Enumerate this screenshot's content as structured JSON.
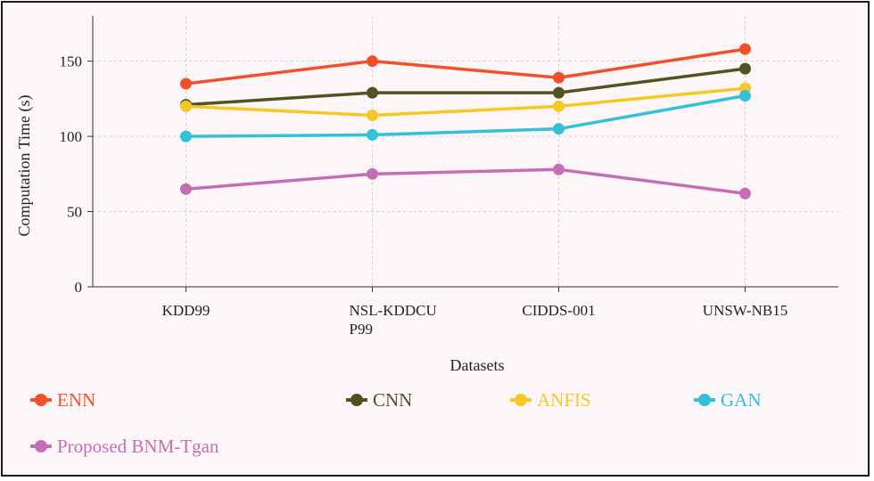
{
  "chart_data": {
    "type": "line",
    "title": "",
    "xlabel": "Datasets",
    "ylabel": "Computation Time (s)",
    "categories": [
      "KDD99",
      "NSL-KDDCUP99",
      "CIDDS-001",
      "UNSW-NB15"
    ],
    "category_display": [
      [
        "KDD99"
      ],
      [
        "NSL-KDDCU",
        "P99"
      ],
      [
        "CIDDS-001"
      ],
      [
        "UNSW-NB15"
      ]
    ],
    "ylim": [
      0,
      180
    ],
    "yticks": [
      0,
      50,
      100,
      150
    ],
    "grid": true,
    "legend_position": "bottom",
    "series": [
      {
        "name": "ENN",
        "color": "#f0512a",
        "values": [
          135,
          150,
          139,
          158
        ]
      },
      {
        "name": "CNN",
        "color": "#4e5420",
        "values": [
          121,
          129,
          129,
          145
        ]
      },
      {
        "name": "ANFIS",
        "color": "#f6c823",
        "values": [
          120,
          114,
          120,
          132
        ]
      },
      {
        "name": "GAN",
        "color": "#33c1d8",
        "values": [
          100,
          101,
          105,
          127
        ]
      },
      {
        "name": "Proposed BNM-Tgan",
        "color": "#c46fb5",
        "values": [
          65,
          75,
          78,
          62
        ]
      }
    ]
  }
}
